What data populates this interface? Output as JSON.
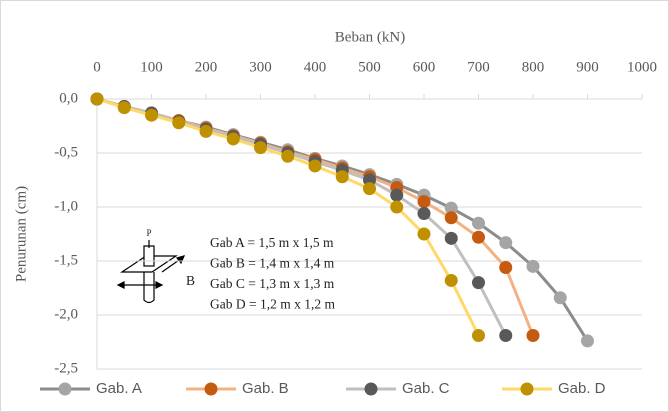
{
  "chart_data": {
    "type": "line",
    "x_label": "Beban (kN)",
    "y_label": "Penurunan (cm)",
    "xlim": [
      0,
      1000
    ],
    "xticks": [
      0,
      100,
      200,
      300,
      400,
      500,
      600,
      700,
      800,
      900,
      1000
    ],
    "ylim": [
      -2.5,
      0
    ],
    "yticks": [
      {
        "value": 0,
        "label": "0,0"
      },
      {
        "value": -0.5,
        "label": "-0,5"
      },
      {
        "value": -1,
        "label": "-1,0"
      },
      {
        "value": -1.5,
        "label": "-1,5"
      },
      {
        "value": -2,
        "label": "-2,0"
      },
      {
        "value": -2.5,
        "label": "-2,5"
      }
    ],
    "grid": true,
    "legend": "bottom",
    "annotations": [
      "Gab A = 1,5 m x 1,5 m",
      "Gab B = 1,4 m x 1,4 m",
      "Gab C = 1,3 m x 1,3 m",
      "Gab D = 1,2 m x 1,2 m"
    ],
    "icon_labels": [
      "P",
      "B"
    ],
    "series": [
      {
        "name": "Gab. A",
        "color": "#a5a5a5",
        "line_color": "#8c8c8c",
        "x": [
          0,
          50,
          100,
          150,
          200,
          250,
          300,
          350,
          400,
          450,
          500,
          550,
          600,
          650,
          700,
          750,
          800,
          850,
          900
        ],
        "values": [
          0,
          -0.07,
          -0.13,
          -0.2,
          -0.26,
          -0.33,
          -0.4,
          -0.47,
          -0.55,
          -0.62,
          -0.7,
          -0.79,
          -0.89,
          -1.01,
          -1.15,
          -1.33,
          -1.55,
          -1.84,
          -2.24
        ]
      },
      {
        "name": "Gab. B",
        "color": "#c55a11",
        "line_color": "#f4b183",
        "x": [
          0,
          50,
          100,
          150,
          200,
          250,
          300,
          350,
          400,
          450,
          500,
          550,
          600,
          650,
          700,
          750,
          800
        ],
        "values": [
          0,
          -0.07,
          -0.13,
          -0.2,
          -0.27,
          -0.34,
          -0.41,
          -0.49,
          -0.56,
          -0.64,
          -0.72,
          -0.82,
          -0.95,
          -1.1,
          -1.28,
          -1.56,
          -2.19
        ]
      },
      {
        "name": "Gab. C",
        "color": "#595959",
        "line_color": "#bfbfbf",
        "x": [
          0,
          50,
          100,
          150,
          200,
          250,
          300,
          350,
          400,
          450,
          500,
          550,
          600,
          650,
          700,
          750
        ],
        "values": [
          0,
          -0.07,
          -0.13,
          -0.21,
          -0.28,
          -0.35,
          -0.42,
          -0.5,
          -0.58,
          -0.66,
          -0.75,
          -0.89,
          -1.06,
          -1.29,
          -1.7,
          -2.19
        ]
      },
      {
        "name": "Gab. D",
        "color": "#bf9000",
        "line_color": "#ffd966",
        "x": [
          0,
          50,
          100,
          150,
          200,
          250,
          300,
          350,
          400,
          450,
          500,
          550,
          600,
          650,
          700
        ],
        "values": [
          0,
          -0.08,
          -0.15,
          -0.22,
          -0.3,
          -0.37,
          -0.45,
          -0.53,
          -0.62,
          -0.72,
          -0.83,
          -1.0,
          -1.25,
          -1.68,
          -2.19
        ]
      }
    ]
  }
}
